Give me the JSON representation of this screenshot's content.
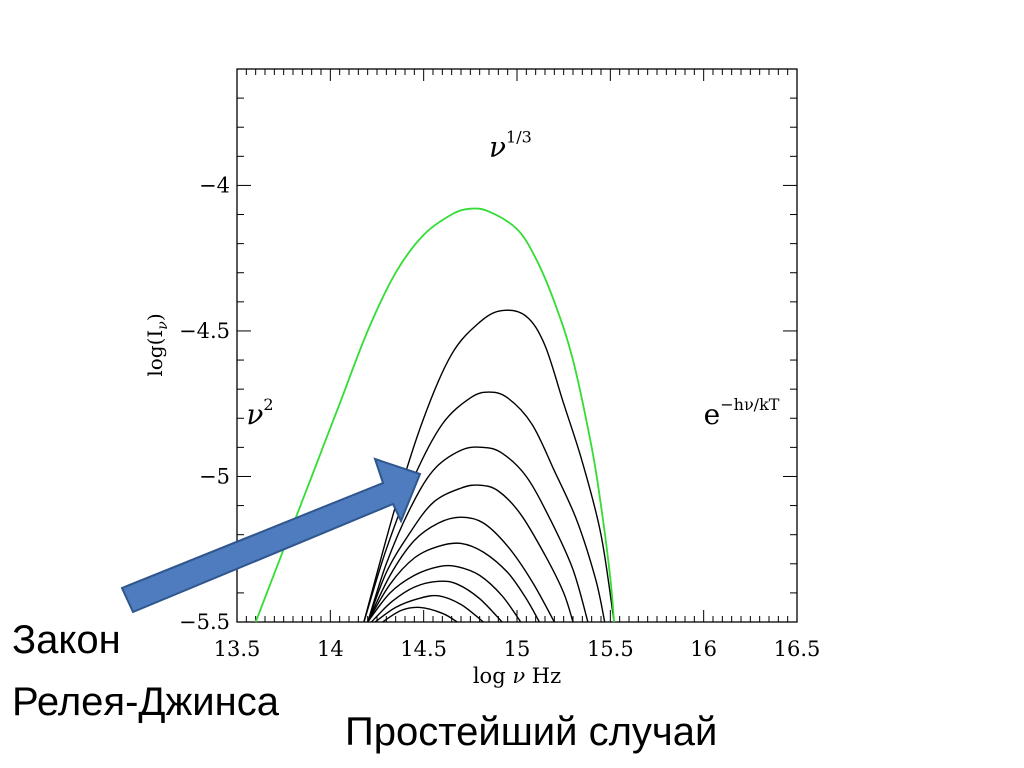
{
  "chart_data": {
    "type": "line",
    "xlabel_parts": [
      "log ",
      "ν",
      " Hz"
    ],
    "ylabel_parts": [
      "log(I",
      "ν",
      ")"
    ],
    "xlim": [
      13.5,
      16.5
    ],
    "ylim": [
      -5.5,
      -3.6
    ],
    "xticks": [
      "13.5",
      "14",
      "14.5",
      "15",
      "15.5",
      "16",
      "16.5"
    ],
    "yticks": [
      "−4",
      "−4.5",
      "−5",
      "−5.5"
    ],
    "annotations": [
      {
        "base": "ν",
        "sup": "1/3",
        "x": 14.85,
        "y": -3.9
      },
      {
        "base": "ν",
        "sup": "2",
        "x": 13.55,
        "y": -4.82
      },
      {
        "base": "e",
        "sup": "−hν/kT",
        "x": 16.0,
        "y": -4.82
      }
    ],
    "envelope": {
      "color": "#33dd33",
      "points": [
        [
          13.6,
          -5.5
        ],
        [
          13.75,
          -5.25
        ],
        [
          13.9,
          -5.0
        ],
        [
          14.05,
          -4.75
        ],
        [
          14.2,
          -4.5
        ],
        [
          14.35,
          -4.3
        ],
        [
          14.5,
          -4.17
        ],
        [
          14.65,
          -4.1
        ],
        [
          14.75,
          -4.08
        ],
        [
          14.85,
          -4.09
        ],
        [
          15.0,
          -4.15
        ],
        [
          15.1,
          -4.25
        ],
        [
          15.2,
          -4.4
        ],
        [
          15.3,
          -4.6
        ],
        [
          15.4,
          -4.9
        ],
        [
          15.45,
          -5.1
        ],
        [
          15.5,
          -5.35
        ],
        [
          15.52,
          -5.5
        ]
      ]
    },
    "series": [
      {
        "points": [
          [
            14.18,
            -5.5
          ],
          [
            14.35,
            -5.1
          ],
          [
            14.5,
            -4.8
          ],
          [
            14.65,
            -4.58
          ],
          [
            14.8,
            -4.47
          ],
          [
            14.92,
            -4.43
          ],
          [
            15.05,
            -4.45
          ],
          [
            15.15,
            -4.55
          ],
          [
            15.25,
            -4.75
          ],
          [
            15.35,
            -4.95
          ],
          [
            15.45,
            -5.2
          ],
          [
            15.52,
            -5.5
          ]
        ]
      },
      {
        "points": [
          [
            14.18,
            -5.5
          ],
          [
            14.3,
            -5.25
          ],
          [
            14.45,
            -5.0
          ],
          [
            14.6,
            -4.82
          ],
          [
            14.75,
            -4.73
          ],
          [
            14.85,
            -4.71
          ],
          [
            14.95,
            -4.73
          ],
          [
            15.08,
            -4.82
          ],
          [
            15.2,
            -4.98
          ],
          [
            15.32,
            -5.15
          ],
          [
            15.42,
            -5.35
          ],
          [
            15.47,
            -5.5
          ]
        ]
      },
      {
        "points": [
          [
            14.2,
            -5.5
          ],
          [
            14.3,
            -5.3
          ],
          [
            14.42,
            -5.12
          ],
          [
            14.55,
            -4.98
          ],
          [
            14.7,
            -4.91
          ],
          [
            14.82,
            -4.9
          ],
          [
            14.92,
            -4.92
          ],
          [
            15.05,
            -5.0
          ],
          [
            15.18,
            -5.15
          ],
          [
            15.3,
            -5.32
          ],
          [
            15.38,
            -5.5
          ]
        ]
      },
      {
        "points": [
          [
            14.2,
            -5.5
          ],
          [
            14.3,
            -5.33
          ],
          [
            14.42,
            -5.2
          ],
          [
            14.55,
            -5.09
          ],
          [
            14.7,
            -5.04
          ],
          [
            14.8,
            -5.03
          ],
          [
            14.9,
            -5.05
          ],
          [
            15.02,
            -5.13
          ],
          [
            15.15,
            -5.27
          ],
          [
            15.25,
            -5.4
          ],
          [
            15.3,
            -5.5
          ]
        ]
      },
      {
        "points": [
          [
            14.2,
            -5.5
          ],
          [
            14.32,
            -5.34
          ],
          [
            14.45,
            -5.22
          ],
          [
            14.58,
            -5.16
          ],
          [
            14.7,
            -5.14
          ],
          [
            14.82,
            -5.16
          ],
          [
            14.95,
            -5.24
          ],
          [
            15.08,
            -5.36
          ],
          [
            15.2,
            -5.5
          ]
        ]
      },
      {
        "points": [
          [
            14.2,
            -5.5
          ],
          [
            14.32,
            -5.37
          ],
          [
            14.45,
            -5.28
          ],
          [
            14.58,
            -5.24
          ],
          [
            14.7,
            -5.23
          ],
          [
            14.82,
            -5.26
          ],
          [
            14.95,
            -5.33
          ],
          [
            15.05,
            -5.42
          ],
          [
            15.12,
            -5.5
          ]
        ]
      },
      {
        "points": [
          [
            14.2,
            -5.5
          ],
          [
            14.32,
            -5.4
          ],
          [
            14.45,
            -5.34
          ],
          [
            14.58,
            -5.31
          ],
          [
            14.68,
            -5.31
          ],
          [
            14.8,
            -5.34
          ],
          [
            14.92,
            -5.41
          ],
          [
            15.02,
            -5.5
          ]
        ]
      },
      {
        "points": [
          [
            14.22,
            -5.5
          ],
          [
            14.33,
            -5.43
          ],
          [
            14.45,
            -5.38
          ],
          [
            14.58,
            -5.36
          ],
          [
            14.68,
            -5.37
          ],
          [
            14.8,
            -5.42
          ],
          [
            14.92,
            -5.5
          ]
        ]
      },
      {
        "points": [
          [
            14.24,
            -5.5
          ],
          [
            14.35,
            -5.45
          ],
          [
            14.47,
            -5.42
          ],
          [
            14.58,
            -5.41
          ],
          [
            14.7,
            -5.44
          ],
          [
            14.82,
            -5.5
          ]
        ]
      },
      {
        "points": [
          [
            14.28,
            -5.5
          ],
          [
            14.38,
            -5.46
          ],
          [
            14.48,
            -5.45
          ],
          [
            14.6,
            -5.47
          ],
          [
            14.68,
            -5.5
          ]
        ]
      }
    ],
    "arrow_color": "#4e7cbf"
  },
  "captions": {
    "line1": "Закон",
    "line2": "Релея-Джинса",
    "line3": "Простейший случай"
  }
}
